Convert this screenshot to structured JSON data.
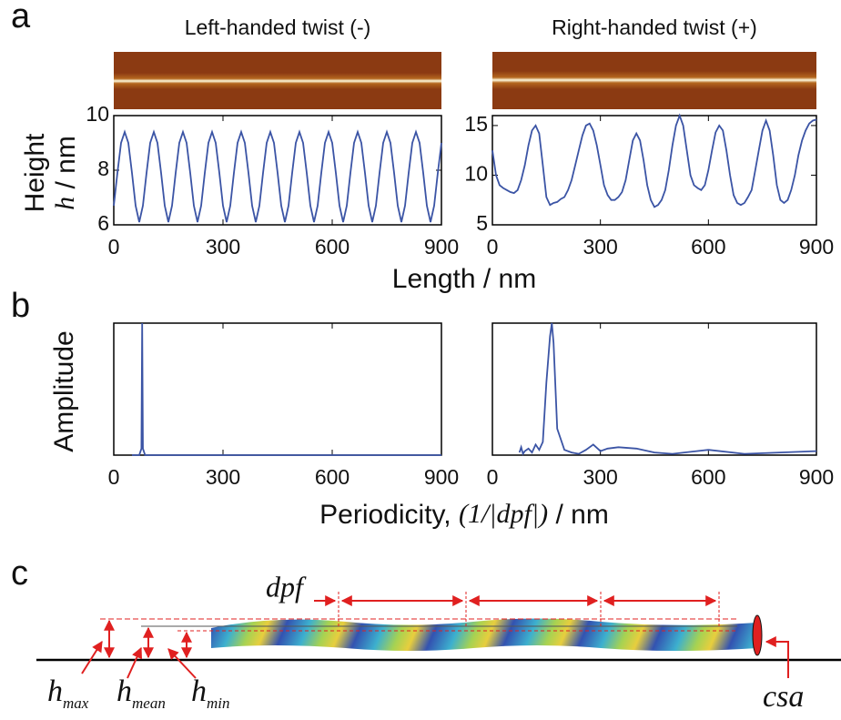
{
  "panels": [
    "a",
    "b",
    "c"
  ],
  "shared_labels": {
    "height_x_label": "Length / nm",
    "height_y_label": "Height",
    "height_y_symbol": "h",
    "height_y_unit": "/ nm",
    "amplitude_y_label": "Amplitude",
    "periodicity_label": "Periodicity,",
    "periodicity_symbol": "(1/|dpf|)",
    "periodicity_unit": "/ nm"
  },
  "chart_data": [
    {
      "type": "line",
      "title": "Left-handed twist (-)",
      "color": "#3b54a5",
      "xlim": [
        0,
        900
      ],
      "xticks": [
        0,
        300,
        600,
        900
      ],
      "ylim": [
        6,
        10
      ],
      "yticks": [
        6,
        8,
        10
      ],
      "x": [
        0,
        10,
        20,
        30,
        40,
        50,
        60,
        70,
        80,
        90,
        100,
        110,
        120,
        130,
        140,
        150,
        160,
        170,
        180,
        190,
        200,
        210,
        220,
        230,
        240,
        250,
        260,
        270,
        280,
        290,
        300,
        310,
        320,
        330,
        340,
        350,
        360,
        370,
        380,
        390,
        400,
        410,
        420,
        430,
        440,
        450,
        460,
        470,
        480,
        490,
        500,
        510,
        520,
        530,
        540,
        550,
        560,
        570,
        580,
        590,
        600,
        610,
        620,
        630,
        640,
        650,
        660,
        670,
        680,
        690,
        700,
        710,
        720,
        730,
        740,
        750,
        760,
        770,
        780,
        790,
        800,
        810,
        820,
        830,
        840,
        850,
        860,
        870,
        880,
        890,
        900
      ],
      "values": [
        6.7,
        7.9,
        9.0,
        9.4,
        9.0,
        7.9,
        6.7,
        6.1,
        6.7,
        7.9,
        9.0,
        9.4,
        9.0,
        7.9,
        6.7,
        6.1,
        6.7,
        7.9,
        9.0,
        9.4,
        9.0,
        7.9,
        6.7,
        6.1,
        6.7,
        7.9,
        9.0,
        9.4,
        9.0,
        7.9,
        6.7,
        6.1,
        6.7,
        7.9,
        9.0,
        9.4,
        9.0,
        7.9,
        6.7,
        6.1,
        6.7,
        7.9,
        9.0,
        9.4,
        9.0,
        7.9,
        6.7,
        6.1,
        6.7,
        7.9,
        9.0,
        9.4,
        9.0,
        7.9,
        6.7,
        6.1,
        6.7,
        7.9,
        9.0,
        9.4,
        9.0,
        7.9,
        6.7,
        6.1,
        6.7,
        7.9,
        9.0,
        9.4,
        9.0,
        7.9,
        6.7,
        6.1,
        6.7,
        7.9,
        9.0,
        9.4,
        9.0,
        7.9,
        6.7,
        6.1,
        6.7,
        7.9,
        9.0,
        9.4,
        9.0,
        7.9,
        6.7,
        6.1,
        6.7,
        7.9,
        9.0
      ]
    },
    {
      "type": "line",
      "title": "Right-handed twist (+)",
      "color": "#3b54a5",
      "xlim": [
        0,
        900
      ],
      "xticks": [
        0,
        300,
        600,
        900
      ],
      "ylim": [
        5,
        16
      ],
      "yticks": [
        5,
        10,
        15
      ],
      "x": [
        0,
        10,
        20,
        30,
        40,
        50,
        60,
        70,
        80,
        90,
        100,
        110,
        120,
        130,
        140,
        150,
        160,
        170,
        180,
        190,
        200,
        210,
        220,
        230,
        240,
        250,
        260,
        270,
        280,
        290,
        300,
        310,
        320,
        330,
        340,
        350,
        360,
        370,
        380,
        390,
        400,
        410,
        420,
        430,
        440,
        450,
        460,
        470,
        480,
        490,
        500,
        510,
        520,
        530,
        540,
        550,
        560,
        570,
        580,
        590,
        600,
        610,
        620,
        630,
        640,
        650,
        660,
        670,
        680,
        690,
        700,
        710,
        720,
        730,
        740,
        750,
        760,
        770,
        780,
        790,
        800,
        810,
        820,
        830,
        840,
        850,
        860,
        870,
        880,
        890,
        900
      ],
      "values": [
        12.5,
        10,
        9,
        8.7,
        8.5,
        8.3,
        8.2,
        8.5,
        9.5,
        11,
        13,
        14.5,
        15,
        14.2,
        11,
        7.8,
        7,
        7.2,
        7.3,
        7.6,
        7.8,
        8.5,
        9.5,
        11,
        12.5,
        14,
        15,
        15.2,
        14.5,
        13,
        11,
        9,
        8,
        7.5,
        7.5,
        7.8,
        8.3,
        9.5,
        11.5,
        13.5,
        14.2,
        13.5,
        11.5,
        9,
        7.5,
        6.8,
        7,
        7.5,
        8.5,
        10.5,
        13,
        15,
        16,
        15,
        12.5,
        10,
        9,
        8.7,
        8.5,
        9,
        10.5,
        12.5,
        14.3,
        15,
        14.5,
        12.5,
        10,
        8,
        7.2,
        7,
        7.2,
        7.8,
        8.5,
        10.5,
        12.5,
        14.5,
        15.5,
        14.5,
        12,
        9,
        7.5,
        7.2,
        7.5,
        8.5,
        10,
        12,
        13.5,
        14.5,
        15.2,
        15.5,
        15.6
      ]
    },
    {
      "type": "line",
      "color": "#3b54a5",
      "xlim": [
        0,
        900
      ],
      "xticks": [
        0,
        300,
        600,
        900
      ],
      "ylim": [
        0,
        1
      ],
      "x": [
        50,
        70,
        76,
        78,
        80,
        86,
        900
      ],
      "values": [
        0,
        0,
        0.05,
        1,
        0.05,
        0,
        0
      ]
    },
    {
      "type": "line",
      "color": "#3b54a5",
      "xlim": [
        0,
        900
      ],
      "xticks": [
        0,
        300,
        600,
        900
      ],
      "ylim": [
        0,
        1
      ],
      "x": [
        75,
        80,
        85,
        90,
        100,
        110,
        120,
        130,
        140,
        150,
        160,
        165,
        170,
        180,
        200,
        220,
        240,
        260,
        280,
        300,
        320,
        350,
        400,
        450,
        500,
        600,
        700,
        800,
        900
      ],
      "values": [
        0.02,
        0.06,
        0.01,
        0.03,
        0.05,
        0.02,
        0.08,
        0.04,
        0.1,
        0.55,
        0.9,
        1.0,
        0.85,
        0.2,
        0.04,
        0.02,
        0.01,
        0.04,
        0.08,
        0.03,
        0.05,
        0.06,
        0.05,
        0.02,
        0.01,
        0.04,
        0.01,
        0.02,
        0.03
      ]
    }
  ],
  "diagram": {
    "dpf": "dpf",
    "h_labels": [
      {
        "symbol": "h",
        "sub": "max"
      },
      {
        "symbol": "h",
        "sub": "mean"
      },
      {
        "symbol": "h",
        "sub": "min"
      }
    ],
    "csa": "csa"
  }
}
